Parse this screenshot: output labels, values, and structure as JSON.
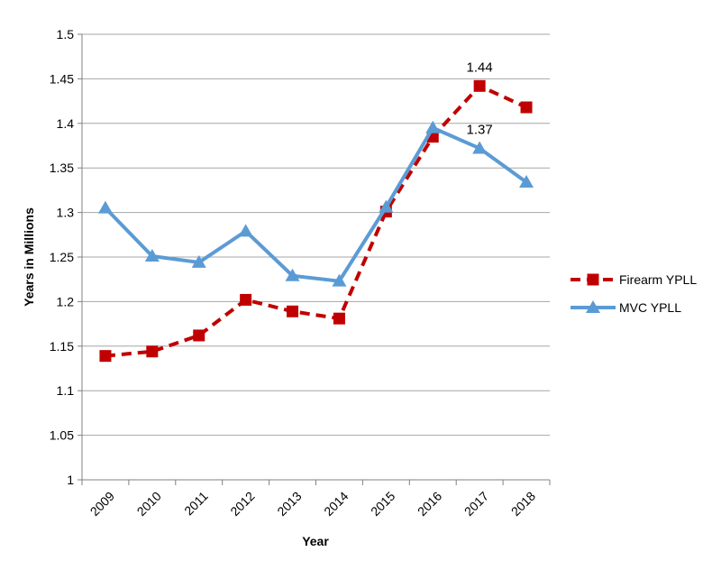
{
  "chart_data": {
    "type": "line",
    "categories": [
      "2009",
      "2010",
      "2011",
      "2012",
      "2013",
      "2014",
      "2015",
      "2016",
      "2017",
      "2018"
    ],
    "series": [
      {
        "name": "Firearm YPLL",
        "values": [
          1.139,
          1.144,
          1.162,
          1.202,
          1.189,
          1.181,
          1.301,
          1.385,
          1.442,
          1.418
        ],
        "color": "#c00000",
        "line_style": "dashed",
        "marker": "square"
      },
      {
        "name": "MVC YPLL",
        "values": [
          1.305,
          1.251,
          1.244,
          1.279,
          1.229,
          1.223,
          1.306,
          1.395,
          1.372,
          1.334
        ],
        "color": "#5b9bd5",
        "line_style": "solid",
        "marker": "triangle"
      }
    ],
    "annotations": [
      {
        "text": "1.44",
        "series": "Firearm YPLL",
        "category": "2017"
      },
      {
        "text": "1.37",
        "series": "MVC YPLL",
        "category": "2017"
      }
    ],
    "xlabel": "Year",
    "ylabel": "Years in Millions",
    "ylim": [
      1,
      1.5
    ],
    "yticks": [
      "1",
      "1.05",
      "1.1",
      "1.15",
      "1.2",
      "1.25",
      "1.3",
      "1.35",
      "1.4",
      "1.45",
      "1.5"
    ],
    "grid": true,
    "legend_position": "right"
  }
}
